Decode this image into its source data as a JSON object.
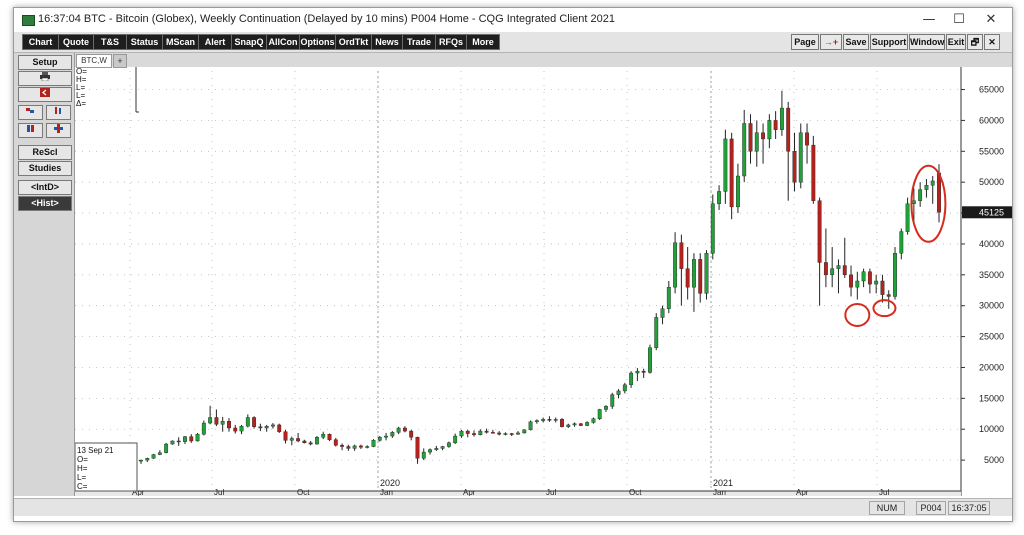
{
  "window": {
    "title": "16:37:04  BTC - Bitcoin (Globex), Weekly Continuation (Delayed by 10 mins)   P004 Home - CQG Integrated Client 2021",
    "controls": [
      "—",
      "☐",
      "✕"
    ]
  },
  "menu": {
    "left_buttons": [
      "Chart",
      "Quote",
      "T&S",
      "Status",
      "MScan",
      "Alert",
      "SnapQ",
      "AllCon",
      "Options",
      "OrdTkt",
      "News",
      "Trade",
      "RFQs",
      "More"
    ],
    "right_buttons": [
      "Page",
      "→+",
      "Save",
      "Support",
      "Window",
      "Exit",
      "🗗",
      "✕"
    ]
  },
  "sidebar": {
    "setup": "Setup",
    "print_icon": "printer-icon",
    "back_icon": "back-icon",
    "rescl": "ReScl",
    "studies": "Studies",
    "intd": "<IntD>",
    "hist": "<Hist>"
  },
  "chart_tab": {
    "label": "BTC,W",
    "add": "+"
  },
  "ohlc_box_top": [
    "O=",
    "H=",
    "L=",
    "L=",
    "Δ="
  ],
  "ohlc_box_bottom": {
    "date": "13 Sep 21",
    "lines": [
      "O=",
      "H=",
      "L=",
      "C="
    ]
  },
  "status": {
    "num": "NUM",
    "page": "P004",
    "time": "16:37:05"
  },
  "colors": {
    "up": "#22a03a",
    "down": "#b3231d",
    "circle": "#d42c1e",
    "grid": "#b9b9b9",
    "price_tag_bg": "#1a1a1a"
  },
  "chart_data": {
    "type": "candlestick",
    "y_ticks": [
      5000,
      10000,
      15000,
      20000,
      25000,
      30000,
      35000,
      40000,
      45000,
      50000,
      55000,
      60000,
      65000
    ],
    "ylim": [
      0,
      68000
    ],
    "x_month_labels": [
      "Apr",
      "Jul",
      "Oct",
      "Jan",
      "Apr",
      "Jul",
      "Oct",
      "Jan",
      "Apr",
      "Jul"
    ],
    "year_labels": [
      "2020",
      "2021"
    ],
    "last_price": "45125",
    "series": [
      {
        "o": 4900,
        "h": 5100,
        "l": 4400,
        "c": 5000
      },
      {
        "o": 5000,
        "h": 5400,
        "l": 4700,
        "c": 5300
      },
      {
        "o": 5300,
        "h": 6000,
        "l": 5200,
        "c": 5900
      },
      {
        "o": 5900,
        "h": 6600,
        "l": 5800,
        "c": 6200
      },
      {
        "o": 6200,
        "h": 7800,
        "l": 6100,
        "c": 7600
      },
      {
        "o": 7600,
        "h": 8200,
        "l": 7500,
        "c": 8100
      },
      {
        "o": 8100,
        "h": 8700,
        "l": 7300,
        "c": 8000
      },
      {
        "o": 8000,
        "h": 8900,
        "l": 7600,
        "c": 8800
      },
      {
        "o": 8800,
        "h": 9200,
        "l": 7800,
        "c": 8100
      },
      {
        "o": 8100,
        "h": 9400,
        "l": 8000,
        "c": 9200
      },
      {
        "o": 9200,
        "h": 11400,
        "l": 9000,
        "c": 11000
      },
      {
        "o": 11000,
        "h": 13800,
        "l": 10800,
        "c": 11900
      },
      {
        "o": 11900,
        "h": 13200,
        "l": 10500,
        "c": 10800
      },
      {
        "o": 10800,
        "h": 12000,
        "l": 9600,
        "c": 11300
      },
      {
        "o": 11300,
        "h": 11800,
        "l": 9600,
        "c": 10200
      },
      {
        "o": 10200,
        "h": 10700,
        "l": 9300,
        "c": 9700
      },
      {
        "o": 9700,
        "h": 10700,
        "l": 9200,
        "c": 10500
      },
      {
        "o": 10500,
        "h": 12400,
        "l": 10300,
        "c": 11900
      },
      {
        "o": 11900,
        "h": 12100,
        "l": 10100,
        "c": 10400
      },
      {
        "o": 10400,
        "h": 10900,
        "l": 9700,
        "c": 10200
      },
      {
        "o": 10200,
        "h": 10700,
        "l": 9600,
        "c": 10500
      },
      {
        "o": 10500,
        "h": 11000,
        "l": 10100,
        "c": 10700
      },
      {
        "o": 10700,
        "h": 10900,
        "l": 9400,
        "c": 9600
      },
      {
        "o": 9600,
        "h": 9900,
        "l": 7700,
        "c": 8200
      },
      {
        "o": 8200,
        "h": 8800,
        "l": 7400,
        "c": 8500
      },
      {
        "o": 8500,
        "h": 9400,
        "l": 7900,
        "c": 8100
      },
      {
        "o": 8100,
        "h": 8300,
        "l": 7700,
        "c": 7800
      },
      {
        "o": 7800,
        "h": 8100,
        "l": 7400,
        "c": 7600
      },
      {
        "o": 7600,
        "h": 8900,
        "l": 7500,
        "c": 8700
      },
      {
        "o": 8700,
        "h": 9600,
        "l": 8400,
        "c": 9200
      },
      {
        "o": 9200,
        "h": 9300,
        "l": 8100,
        "c": 8300
      },
      {
        "o": 8300,
        "h": 8600,
        "l": 7200,
        "c": 7400
      },
      {
        "o": 7400,
        "h": 7700,
        "l": 6600,
        "c": 7200
      },
      {
        "o": 7200,
        "h": 7500,
        "l": 6500,
        "c": 6900
      },
      {
        "o": 6900,
        "h": 7500,
        "l": 6500,
        "c": 7300
      },
      {
        "o": 7300,
        "h": 7500,
        "l": 6800,
        "c": 7100
      },
      {
        "o": 7100,
        "h": 7400,
        "l": 6900,
        "c": 7200
      },
      {
        "o": 7200,
        "h": 8400,
        "l": 7100,
        "c": 8200
      },
      {
        "o": 8200,
        "h": 8900,
        "l": 8000,
        "c": 8700
      },
      {
        "o": 8700,
        "h": 9400,
        "l": 8200,
        "c": 8900
      },
      {
        "o": 8900,
        "h": 9700,
        "l": 8600,
        "c": 9500
      },
      {
        "o": 9500,
        "h": 10400,
        "l": 9200,
        "c": 10200
      },
      {
        "o": 10200,
        "h": 10500,
        "l": 9500,
        "c": 9700
      },
      {
        "o": 9700,
        "h": 9900,
        "l": 8200,
        "c": 8700
      },
      {
        "o": 8700,
        "h": 8800,
        "l": 4400,
        "c": 5300
      },
      {
        "o": 5300,
        "h": 6900,
        "l": 5000,
        "c": 6300
      },
      {
        "o": 6300,
        "h": 6900,
        "l": 5900,
        "c": 6700
      },
      {
        "o": 6700,
        "h": 7300,
        "l": 6500,
        "c": 6900
      },
      {
        "o": 6900,
        "h": 7300,
        "l": 6600,
        "c": 7200
      },
      {
        "o": 7200,
        "h": 8000,
        "l": 7000,
        "c": 7800
      },
      {
        "o": 7800,
        "h": 9300,
        "l": 7600,
        "c": 8900
      },
      {
        "o": 8900,
        "h": 9900,
        "l": 8600,
        "c": 9700
      },
      {
        "o": 9700,
        "h": 9900,
        "l": 8700,
        "c": 9300
      },
      {
        "o": 9300,
        "h": 9800,
        "l": 8800,
        "c": 9100
      },
      {
        "o": 9100,
        "h": 10000,
        "l": 9000,
        "c": 9700
      },
      {
        "o": 9700,
        "h": 10100,
        "l": 9300,
        "c": 9500
      },
      {
        "o": 9500,
        "h": 9900,
        "l": 9300,
        "c": 9400
      },
      {
        "o": 9400,
        "h": 9700,
        "l": 9000,
        "c": 9200
      },
      {
        "o": 9200,
        "h": 9500,
        "l": 9000,
        "c": 9300
      },
      {
        "o": 9300,
        "h": 9400,
        "l": 8900,
        "c": 9200
      },
      {
        "o": 9200,
        "h": 9700,
        "l": 9100,
        "c": 9400
      },
      {
        "o": 9400,
        "h": 10000,
        "l": 9300,
        "c": 9900
      },
      {
        "o": 9900,
        "h": 11400,
        "l": 9800,
        "c": 11200
      },
      {
        "o": 11200,
        "h": 11600,
        "l": 10900,
        "c": 11400
      },
      {
        "o": 11400,
        "h": 11900,
        "l": 11100,
        "c": 11600
      },
      {
        "o": 11600,
        "h": 12100,
        "l": 11200,
        "c": 11500
      },
      {
        "o": 11500,
        "h": 11900,
        "l": 11100,
        "c": 11600
      },
      {
        "o": 11600,
        "h": 11800,
        "l": 10300,
        "c": 10400
      },
      {
        "o": 10400,
        "h": 10900,
        "l": 10200,
        "c": 10700
      },
      {
        "o": 10700,
        "h": 11100,
        "l": 10400,
        "c": 10900
      },
      {
        "o": 10900,
        "h": 11000,
        "l": 10500,
        "c": 10600
      },
      {
        "o": 10600,
        "h": 11300,
        "l": 10500,
        "c": 11100
      },
      {
        "o": 11100,
        "h": 11900,
        "l": 10900,
        "c": 11700
      },
      {
        "o": 11700,
        "h": 13300,
        "l": 11500,
        "c": 13200
      },
      {
        "o": 13200,
        "h": 13900,
        "l": 12800,
        "c": 13700
      },
      {
        "o": 13700,
        "h": 15900,
        "l": 13300,
        "c": 15600
      },
      {
        "o": 15600,
        "h": 16500,
        "l": 15000,
        "c": 16200
      },
      {
        "o": 16200,
        "h": 17500,
        "l": 15800,
        "c": 17200
      },
      {
        "o": 17200,
        "h": 19400,
        "l": 16700,
        "c": 19100
      },
      {
        "o": 19100,
        "h": 19900,
        "l": 17800,
        "c": 19400
      },
      {
        "o": 19400,
        "h": 19800,
        "l": 18300,
        "c": 19200
      },
      {
        "o": 19200,
        "h": 23700,
        "l": 19000,
        "c": 23200
      },
      {
        "o": 23200,
        "h": 28800,
        "l": 22800,
        "c": 28100
      },
      {
        "o": 28100,
        "h": 30000,
        "l": 27000,
        "c": 29500
      },
      {
        "o": 29500,
        "h": 34000,
        "l": 28800,
        "c": 33000
      },
      {
        "o": 33000,
        "h": 41900,
        "l": 32000,
        "c": 40200
      },
      {
        "o": 40200,
        "h": 41500,
        "l": 30000,
        "c": 36000
      },
      {
        "o": 36000,
        "h": 39500,
        "l": 31000,
        "c": 33000
      },
      {
        "o": 33000,
        "h": 38500,
        "l": 29000,
        "c": 37500
      },
      {
        "o": 37500,
        "h": 38500,
        "l": 30500,
        "c": 32000
      },
      {
        "o": 32000,
        "h": 39000,
        "l": 31000,
        "c": 38500
      },
      {
        "o": 38500,
        "h": 48000,
        "l": 37500,
        "c": 46500
      },
      {
        "o": 46500,
        "h": 49500,
        "l": 45500,
        "c": 48500
      },
      {
        "o": 48500,
        "h": 58500,
        "l": 46500,
        "c": 57000
      },
      {
        "o": 57000,
        "h": 58000,
        "l": 44000,
        "c": 46000
      },
      {
        "o": 46000,
        "h": 53000,
        "l": 45000,
        "c": 51000
      },
      {
        "o": 51000,
        "h": 61700,
        "l": 50000,
        "c": 59500
      },
      {
        "o": 59500,
        "h": 61000,
        "l": 53000,
        "c": 55000
      },
      {
        "o": 55000,
        "h": 60000,
        "l": 52500,
        "c": 58000
      },
      {
        "o": 58000,
        "h": 59500,
        "l": 53000,
        "c": 57000
      },
      {
        "o": 57000,
        "h": 61000,
        "l": 55500,
        "c": 60000
      },
      {
        "o": 60000,
        "h": 61500,
        "l": 57000,
        "c": 58500
      },
      {
        "o": 58500,
        "h": 64800,
        "l": 57500,
        "c": 62000
      },
      {
        "o": 62000,
        "h": 63000,
        "l": 47000,
        "c": 55000
      },
      {
        "o": 55000,
        "h": 58000,
        "l": 48500,
        "c": 50000
      },
      {
        "o": 50000,
        "h": 59500,
        "l": 49000,
        "c": 58000
      },
      {
        "o": 58000,
        "h": 59500,
        "l": 53000,
        "c": 56000
      },
      {
        "o": 56000,
        "h": 57500,
        "l": 46500,
        "c": 47000
      },
      {
        "o": 47000,
        "h": 47500,
        "l": 30000,
        "c": 37000
      },
      {
        "o": 37000,
        "h": 42500,
        "l": 33000,
        "c": 35000
      },
      {
        "o": 35000,
        "h": 39500,
        "l": 33000,
        "c": 36000
      },
      {
        "o": 36000,
        "h": 37500,
        "l": 32000,
        "c": 36500
      },
      {
        "o": 36500,
        "h": 41000,
        "l": 34500,
        "c": 35000
      },
      {
        "o": 35000,
        "h": 36500,
        "l": 31500,
        "c": 33000
      },
      {
        "o": 33000,
        "h": 35500,
        "l": 31000,
        "c": 34000
      },
      {
        "o": 34000,
        "h": 36000,
        "l": 33000,
        "c": 35500
      },
      {
        "o": 35500,
        "h": 36000,
        "l": 32000,
        "c": 33500
      },
      {
        "o": 33500,
        "h": 35000,
        "l": 32000,
        "c": 34000
      },
      {
        "o": 34000,
        "h": 35000,
        "l": 30500,
        "c": 31800
      },
      {
        "o": 31800,
        "h": 32500,
        "l": 29500,
        "c": 31500
      },
      {
        "o": 31500,
        "h": 39500,
        "l": 31000,
        "c": 38500
      },
      {
        "o": 38500,
        "h": 42500,
        "l": 37500,
        "c": 42000
      },
      {
        "o": 42000,
        "h": 47500,
        "l": 41500,
        "c": 46500
      },
      {
        "o": 46500,
        "h": 49000,
        "l": 43500,
        "c": 47000
      },
      {
        "o": 47000,
        "h": 50000,
        "l": 46000,
        "c": 48800
      },
      {
        "o": 48800,
        "h": 50500,
        "l": 47500,
        "c": 49500
      },
      {
        "o": 49500,
        "h": 51000,
        "l": 46500,
        "c": 50200
      },
      {
        "o": 51500,
        "h": 52900,
        "l": 43500,
        "c": 45125
      }
    ]
  }
}
